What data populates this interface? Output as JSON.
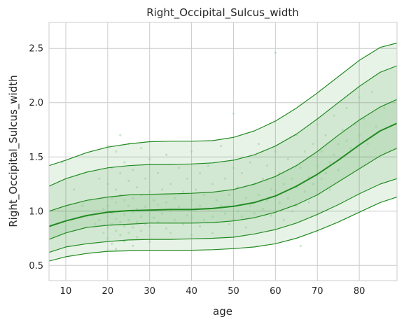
{
  "chart_data": {
    "type": "line",
    "title": "Right_Occipital_Sulcus_width",
    "xlabel": "age",
    "ylabel": "Right_Occipital_Sulcus_width",
    "xlim": [
      6,
      89
    ],
    "ylim": [
      0.36,
      2.74
    ],
    "xticks": [
      "10",
      "20",
      "30",
      "40",
      "50",
      "60",
      "70",
      "80"
    ],
    "xtick_values": [
      10,
      20,
      30,
      40,
      50,
      60,
      70,
      80
    ],
    "yticks": [
      "0.5",
      "1.0",
      "1.5",
      "2.0",
      "2.5"
    ],
    "ytick_values": [
      0.5,
      1.0,
      1.5,
      2.0,
      2.5
    ],
    "grid": true,
    "colors": {
      "line": "#228b22",
      "band": "#228b22",
      "points": "#8fcf8f"
    },
    "x": [
      6,
      10,
      15,
      20,
      25,
      30,
      35,
      40,
      45,
      50,
      55,
      60,
      65,
      70,
      75,
      80,
      85,
      89
    ],
    "series": [
      {
        "percentile": 5,
        "values": [
          0.54,
          0.58,
          0.61,
          0.63,
          0.635,
          0.64,
          0.64,
          0.64,
          0.645,
          0.655,
          0.67,
          0.7,
          0.75,
          0.82,
          0.9,
          0.99,
          1.08,
          1.13
        ]
      },
      {
        "percentile": 10,
        "values": [
          0.62,
          0.67,
          0.7,
          0.72,
          0.735,
          0.74,
          0.74,
          0.745,
          0.75,
          0.76,
          0.79,
          0.83,
          0.89,
          0.97,
          1.06,
          1.16,
          1.25,
          1.3
        ]
      },
      {
        "percentile": 25,
        "values": [
          0.74,
          0.8,
          0.85,
          0.87,
          0.88,
          0.89,
          0.89,
          0.89,
          0.895,
          0.91,
          0.94,
          0.99,
          1.06,
          1.15,
          1.27,
          1.39,
          1.51,
          1.58
        ]
      },
      {
        "percentile": 50,
        "values": [
          0.86,
          0.91,
          0.96,
          0.99,
          1.005,
          1.01,
          1.015,
          1.015,
          1.025,
          1.045,
          1.08,
          1.14,
          1.23,
          1.34,
          1.47,
          1.61,
          1.74,
          1.81
        ]
      },
      {
        "percentile": 75,
        "values": [
          1.0,
          1.05,
          1.1,
          1.13,
          1.15,
          1.155,
          1.16,
          1.165,
          1.175,
          1.2,
          1.25,
          1.32,
          1.42,
          1.55,
          1.7,
          1.84,
          1.96,
          2.03
        ]
      },
      {
        "percentile": 90,
        "values": [
          1.23,
          1.3,
          1.36,
          1.4,
          1.42,
          1.43,
          1.43,
          1.435,
          1.445,
          1.47,
          1.52,
          1.6,
          1.71,
          1.85,
          2.0,
          2.15,
          2.28,
          2.34
        ]
      },
      {
        "percentile": 95,
        "values": [
          1.42,
          1.47,
          1.54,
          1.59,
          1.62,
          1.64,
          1.645,
          1.645,
          1.65,
          1.68,
          1.74,
          1.83,
          1.95,
          2.09,
          2.24,
          2.39,
          2.51,
          2.55
        ]
      }
    ],
    "scatter": [
      [
        9,
        1.45
      ],
      [
        12,
        1.2
      ],
      [
        14,
        1.05
      ],
      [
        15,
        0.95
      ],
      [
        16,
        1.1
      ],
      [
        17,
        0.88
      ],
      [
        18,
        1.3
      ],
      [
        18,
        0.92
      ],
      [
        19,
        1.02
      ],
      [
        19,
        0.8
      ],
      [
        20,
        1.6
      ],
      [
        20,
        1.25
      ],
      [
        20,
        1.05
      ],
      [
        20,
        0.95
      ],
      [
        20,
        0.85
      ],
      [
        20,
        0.75
      ],
      [
        21,
        1.4
      ],
      [
        21,
        1.12
      ],
      [
        21,
        0.98
      ],
      [
        21,
        0.88
      ],
      [
        21,
        0.7
      ],
      [
        22,
        1.55
      ],
      [
        22,
        1.2
      ],
      [
        22,
        1.08
      ],
      [
        22,
        0.93
      ],
      [
        22,
        0.82
      ],
      [
        22,
        0.65
      ],
      [
        23,
        1.7
      ],
      [
        23,
        1.35
      ],
      [
        23,
        1.15
      ],
      [
        23,
        1.0
      ],
      [
        23,
        0.9
      ],
      [
        23,
        0.78
      ],
      [
        24,
        1.45
      ],
      [
        24,
        1.1
      ],
      [
        24,
        0.97
      ],
      [
        24,
        0.86
      ],
      [
        24,
        0.72
      ],
      [
        25,
        1.62
      ],
      [
        25,
        1.28
      ],
      [
        25,
        1.05
      ],
      [
        25,
        0.92
      ],
      [
        25,
        0.8
      ],
      [
        26,
        1.38
      ],
      [
        26,
        1.12
      ],
      [
        26,
        0.99
      ],
      [
        26,
        0.85
      ],
      [
        26,
        0.68
      ],
      [
        27,
        1.22
      ],
      [
        27,
        1.02
      ],
      [
        27,
        0.9
      ],
      [
        27,
        0.76
      ],
      [
        28,
        1.58
      ],
      [
        28,
        1.15
      ],
      [
        28,
        0.95
      ],
      [
        28,
        0.82
      ],
      [
        29,
        1.3
      ],
      [
        29,
        1.04
      ],
      [
        29,
        0.88
      ],
      [
        30,
        1.48
      ],
      [
        30,
        1.18
      ],
      [
        30,
        1.0
      ],
      [
        30,
        0.86
      ],
      [
        30,
        0.72
      ],
      [
        31,
        1.1
      ],
      [
        31,
        0.94
      ],
      [
        32,
        1.35
      ],
      [
        32,
        1.06
      ],
      [
        32,
        0.9
      ],
      [
        33,
        1.2
      ],
      [
        33,
        0.98
      ],
      [
        34,
        1.52
      ],
      [
        34,
        1.08
      ],
      [
        34,
        0.84
      ],
      [
        35,
        1.25
      ],
      [
        35,
        1.0
      ],
      [
        35,
        0.8
      ],
      [
        36,
        1.12
      ],
      [
        36,
        0.92
      ],
      [
        37,
        1.4
      ],
      [
        37,
        1.04
      ],
      [
        38,
        1.18
      ],
      [
        38,
        0.88
      ],
      [
        39,
        1.3
      ],
      [
        39,
        0.96
      ],
      [
        40,
        1.55
      ],
      [
        40,
        1.1
      ],
      [
        40,
        0.94
      ],
      [
        40,
        0.78
      ],
      [
        41,
        1.2
      ],
      [
        41,
        1.0
      ],
      [
        42,
        1.35
      ],
      [
        42,
        1.05
      ],
      [
        42,
        0.86
      ],
      [
        43,
        1.15
      ],
      [
        43,
        0.92
      ],
      [
        44,
        1.42
      ],
      [
        44,
        1.02
      ],
      [
        45,
        1.25
      ],
      [
        45,
        0.95
      ],
      [
        45,
        0.8
      ],
      [
        46,
        1.1
      ],
      [
        46,
        0.9
      ],
      [
        47,
        1.6
      ],
      [
        47,
        1.05
      ],
      [
        48,
        1.3
      ],
      [
        48,
        0.98
      ],
      [
        49,
        1.15
      ],
      [
        49,
        0.88
      ],
      [
        50,
        1.9
      ],
      [
        50,
        1.4
      ],
      [
        50,
        1.08
      ],
      [
        50,
        0.92
      ],
      [
        51,
        1.22
      ],
      [
        51,
        1.0
      ],
      [
        52,
        1.35
      ],
      [
        52,
        0.95
      ],
      [
        53,
        1.12
      ],
      [
        53,
        0.85
      ],
      [
        54,
        1.45
      ],
      [
        54,
        1.05
      ],
      [
        55,
        1.25
      ],
      [
        55,
        0.98
      ],
      [
        56,
        1.62
      ],
      [
        56,
        1.15
      ],
      [
        57,
        1.3
      ],
      [
        57,
        1.02
      ],
      [
        58,
        1.42
      ],
      [
        58,
        1.1
      ],
      [
        59,
        1.2
      ],
      [
        59,
        0.96
      ],
      [
        60,
        2.46
      ],
      [
        60,
        1.55
      ],
      [
        60,
        1.18
      ],
      [
        60,
        1.0
      ],
      [
        61,
        1.35
      ],
      [
        61,
        1.08
      ],
      [
        62,
        1.25
      ],
      [
        62,
        0.92
      ],
      [
        63,
        1.48
      ],
      [
        63,
        1.12
      ],
      [
        64,
        1.3
      ],
      [
        64,
        1.0
      ],
      [
        65,
        1.7
      ],
      [
        65,
        1.22
      ],
      [
        65,
        1.05
      ],
      [
        66,
        1.4
      ],
      [
        66,
        0.68
      ],
      [
        67,
        1.55
      ],
      [
        67,
        1.18
      ],
      [
        68,
        1.32
      ],
      [
        68,
        1.08
      ],
      [
        69,
        1.62
      ],
      [
        69,
        1.25
      ],
      [
        70,
        1.8
      ],
      [
        70,
        1.42
      ],
      [
        70,
        1.15
      ],
      [
        71,
        1.55
      ],
      [
        71,
        1.3
      ],
      [
        72,
        1.7
      ],
      [
        72,
        1.35
      ],
      [
        73,
        1.45
      ],
      [
        73,
        1.2
      ],
      [
        74,
        1.88
      ],
      [
        74,
        1.52
      ],
      [
        75,
        1.62
      ],
      [
        75,
        1.38
      ],
      [
        76,
        1.75
      ],
      [
        76,
        1.5
      ],
      [
        77,
        1.95
      ],
      [
        77,
        1.65
      ],
      [
        78,
        1.58
      ],
      [
        79,
        1.8
      ],
      [
        80,
        2.05
      ],
      [
        80,
        1.7
      ],
      [
        81,
        1.85
      ],
      [
        82,
        1.62
      ],
      [
        83,
        2.1
      ],
      [
        84,
        1.78
      ],
      [
        86,
        1.95
      ]
    ]
  }
}
